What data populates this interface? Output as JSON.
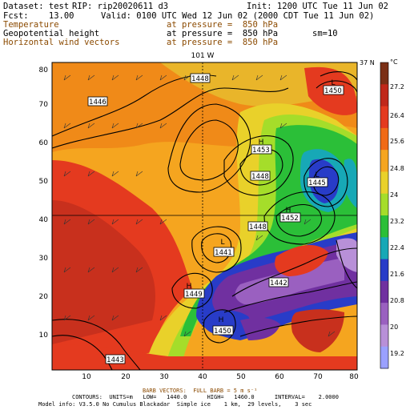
{
  "header": {
    "dataset": "Dataset: test",
    "rip": "RIP: rip20020611 d3",
    "init": "Init: 1200 UTC Tue 11 Jun 02",
    "fcst": "Fcst:    13.00",
    "valid": "Valid: 0100 UTC Wed 12 Jun 02 (2000 CDT Tue 11 Jun 02)",
    "field1": "Temperature",
    "field1_level": "at pressure =  850 hPa",
    "field2": "Geopotential height",
    "field2_level": "at pressure =  850 hPa",
    "field2_extra": "sm=10",
    "field3": "Horizontal wind vectors",
    "field3_level": "at pressure =  850 hPa"
  },
  "map": {
    "top_lon_label": "101 W",
    "right_lat_label": "37 N",
    "x_ticks": [
      "10",
      "20",
      "30",
      "40",
      "50",
      "60",
      "70",
      "80"
    ],
    "y_ticks": [
      "10",
      "20",
      "30",
      "40",
      "50",
      "60",
      "70",
      "80"
    ],
    "height_labels": [
      {
        "marker": "",
        "value": "1448"
      },
      {
        "marker": "",
        "value": "1446"
      },
      {
        "marker": "L",
        "value": "1450"
      },
      {
        "marker": "H",
        "value": "1453"
      },
      {
        "marker": "",
        "value": "1448"
      },
      {
        "marker": "L",
        "value": "1445"
      },
      {
        "marker": "H",
        "value": "1452"
      },
      {
        "marker": "",
        "value": "1448"
      },
      {
        "marker": "L",
        "value": "1441"
      },
      {
        "marker": "H",
        "value": "1449"
      },
      {
        "marker": "",
        "value": "1442"
      },
      {
        "marker": "H",
        "value": "1450"
      },
      {
        "marker": "",
        "value": "1443"
      }
    ]
  },
  "colorbar": {
    "unit": "°C",
    "labels": [
      "27.2",
      "26.4",
      "25.6",
      "24.8",
      "24",
      "23.2",
      "22.4",
      "21.6",
      "20.8",
      "20",
      "19.2"
    ],
    "colors": [
      "#7b2f16",
      "#c0281a",
      "#e43a1f",
      "#f06a16",
      "#f5a51f",
      "#e9d12a",
      "#a5dd2a",
      "#2bbf38",
      "#17a8b6",
      "#283cc8",
      "#7030a0",
      "#9a60c0",
      "#b890d8",
      "#9aa0ff"
    ]
  },
  "footer": {
    "barb_line": "BARB VECTORS:  FULL BARB = 5 m s⁻¹",
    "contours_line": "CONTOURS:  UNITS=m   LOW=   1440.0      HIGH=   1460.0      INTERVAL=    2.0000",
    "model_line": "Model info: V3.5.0 No Cumulus Blackadar  Simple ice    1 km,  29 levels,    3 sec"
  }
}
